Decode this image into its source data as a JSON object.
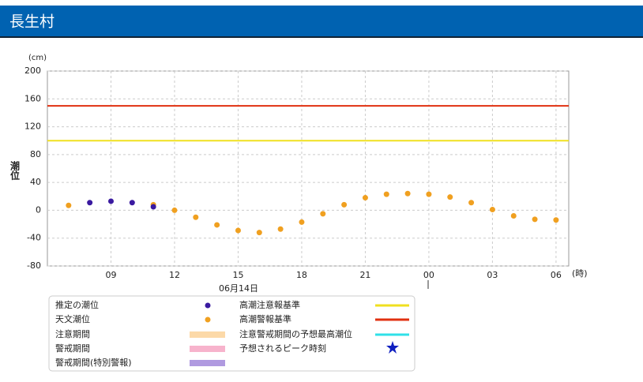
{
  "header": {
    "title": "長生村"
  },
  "chart_data": {
    "type": "scatter",
    "y_unit": "(cm)",
    "x_unit": "(時)",
    "ylabel": "潮位",
    "date_label": "06月14日",
    "xlim": [
      6,
      30.6
    ],
    "ylim": [
      -80,
      200
    ],
    "xticks": [
      {
        "value": 9,
        "label": "09"
      },
      12,
      15,
      18,
      21,
      {
        "value": 24,
        "label": "00"
      },
      {
        "value": 27,
        "label": "03"
      },
      {
        "value": 30,
        "label": "06"
      }
    ],
    "yticks": [
      -80,
      -40,
      0,
      40,
      80,
      120,
      160,
      200
    ],
    "grid": true,
    "series": [
      {
        "name": "推定の潮位",
        "color": "#3a1aa0",
        "x": [
          8,
          9,
          10,
          11
        ],
        "values": [
          11,
          13,
          11,
          5
        ]
      },
      {
        "name": "天文潮位",
        "color": "#f0a020",
        "x": [
          7,
          11,
          12,
          13,
          14,
          15,
          16,
          17,
          18,
          19,
          20,
          21,
          22,
          23,
          24,
          25,
          26,
          27,
          28,
          29,
          30
        ],
        "values": [
          7,
          8,
          0,
          -10,
          -21,
          -29,
          -32,
          -27,
          -17,
          -5,
          8,
          18,
          23,
          24,
          23,
          19,
          11,
          1,
          -8,
          -13,
          -14
        ]
      }
    ],
    "thresholds": [
      {
        "name": "高潮注意報基準",
        "color": "#f0e020",
        "value": 100
      },
      {
        "name": "高潮警報基準",
        "color": "#e03010",
        "value": 150
      }
    ],
    "periods": [
      {
        "name": "注意期間",
        "color": "#fcd9a8"
      },
      {
        "name": "警戒期間",
        "color": "#f7b3cc"
      },
      {
        "name": "警戒期間(特別警報)",
        "color": "#b09ae0"
      }
    ],
    "forecast_max": {
      "name": "注意警戒期間の予想最高潮位",
      "color": "#30e0e8"
    },
    "peak_time": {
      "name": "予想されるピーク時刻",
      "color": "#1020c0"
    }
  }
}
